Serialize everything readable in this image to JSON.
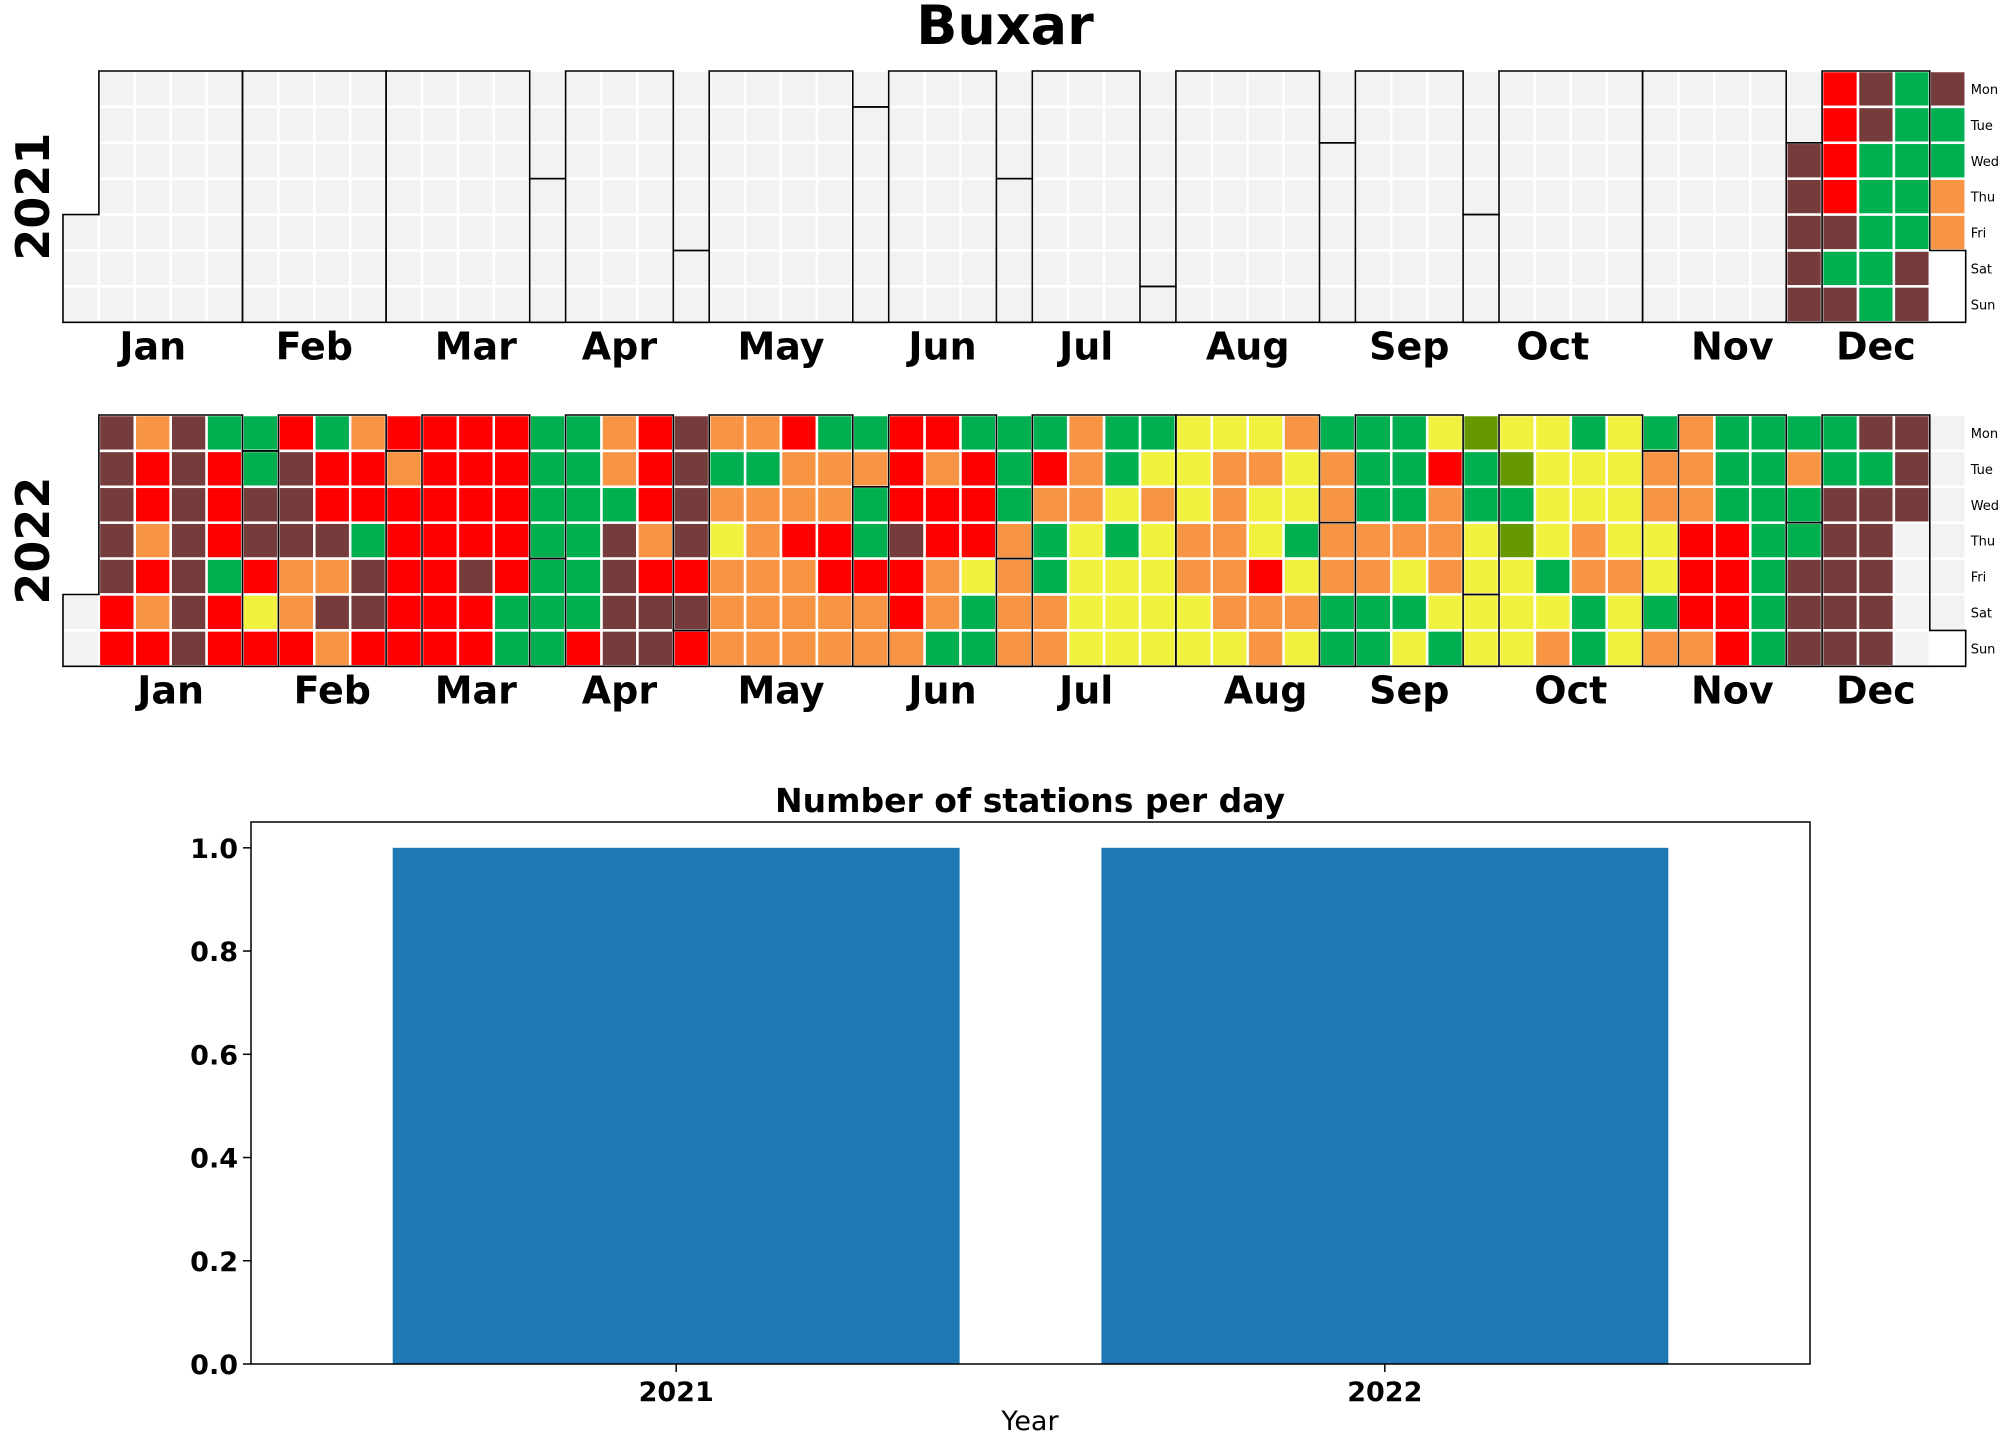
{
  "figure_title": "Buxar",
  "colors": {
    "background": "#ffffff",
    "empty_cell": "#f2f2f2",
    "grid_line": "#ffffff",
    "month_border": "#000000",
    "bar": "#1f77b4",
    "aqi_palette": {
      "G": "#00b050",
      "L": "#669900",
      "Y": "#f0f23f",
      "O": "#f79545",
      "R": "#ff0000",
      "M": "#763b3b"
    }
  },
  "chart_data": [
    {
      "type": "heatmap",
      "year": "2021",
      "start_date": "2021-01-01",
      "month_labels": [
        "Jan",
        "Feb",
        "Mar",
        "Apr",
        "May",
        "Jun",
        "Jul",
        "Aug",
        "Sep",
        "Oct",
        "Nov",
        "Dec"
      ],
      "weekday_labels": [
        "Mon",
        "Tue",
        "Wed",
        "Thu",
        "Fri",
        "Sat",
        "Sun"
      ],
      "weeks": [
        "ooooooo",
        "ooooooo",
        "ooooooo",
        "ooooooo",
        "ooooooo",
        "ooooooo",
        "ooooooo",
        "ooooooo",
        "ooooooo",
        "ooooooo",
        "ooooooo",
        "ooooooo",
        "ooooooo",
        "ooooooo",
        "ooooooo",
        "ooooooo",
        "ooooooo",
        "ooooooo",
        "ooooooo",
        "ooooooo",
        "ooooooo",
        "ooooooo",
        "ooooooo",
        "ooooooo",
        "ooooooo",
        "ooooooo",
        "ooooooo",
        "ooooooo",
        "ooooooo",
        "ooooooo",
        "ooooooo",
        "ooooooo",
        "ooooooo",
        "ooooooo",
        "ooooooo",
        "ooooooo",
        "ooooooo",
        "ooooooo",
        "ooooooo",
        "ooooooo",
        "ooooooo",
        "ooooooo",
        "ooooooo",
        "ooooooo",
        "ooooooo",
        "ooooooo",
        "ooooooo",
        "ooooooo",
        "ooMMMMM",
        "RRRRMGM",
        "MMGGGGG",
        "GGGGGMM",
        "MGGOO"
      ]
    },
    {
      "type": "heatmap",
      "year": "2022",
      "start_date": "2022-01-01",
      "month_labels": [
        "Jan",
        "Feb",
        "Mar",
        "Apr",
        "May",
        "Jun",
        "Jul",
        "Aug",
        "Sep",
        "Oct",
        "Nov",
        "Dec"
      ],
      "weekday_labels": [
        "Mon",
        "Tue",
        "Wed",
        "Thu",
        "Fri",
        "Sat",
        "Sun"
      ],
      "weeks": [
        "ooooooo",
        "MMMMMRR",
        "ORROROR",
        "MMMMMMM",
        "GRRRGRR",
        "GGMMRYR",
        "RMMMOOR",
        "GRRMOMO",
        "ORRGMMR",
        "RORRRRR",
        "RRRRRRR",
        "RRRRMRR",
        "RRRRRGG",
        "GGGGGGG",
        "GGGGGGR",
        "OOGMMMM",
        "RRRORMM",
        "MMMMRMR",
        "OGOYOOO",
        "OGOOOOO",
        "ROOROOO",
        "GOORROO",
        "GOGGROO",
        "RRRMRRO",
        "RORROOG",
        "GRRRYGG",
        "GGGOOOO",
        "GROGGOO",
        "OOOYYYY",
        "GGYGYYY",
        "GYOYYYY",
        "YYYOOYY",
        "YOOOOOY",
        "YOYYROO",
        "OYYGYOY",
        "GOOOOGG",
        "GGGOOGG",
        "GGGOYGY",
        "YROOOYG",
        "LGGYYYY",
        "YLGLYYY",
        "YYYYGYO",
        "GYYOOGG",
        "YYYYOYY",
        "GOOYYGO",
        "OOORRRO",
        "GGGRRRR",
        "GGGGGGG",
        "GOGGMMM",
        "GGMMMMM",
        "MGMMMMM",
        "MMM"
      ]
    },
    {
      "type": "bar",
      "title": "Number of stations per day",
      "categories": [
        "2021",
        "2022"
      ],
      "values": [
        1,
        1
      ],
      "xlabel": "Year",
      "ylabel": "",
      "ylim": [
        0,
        1.05
      ],
      "yticks": [
        "0.0",
        "0.2",
        "0.4",
        "0.6",
        "0.8",
        "1.0"
      ],
      "grid": false
    }
  ]
}
